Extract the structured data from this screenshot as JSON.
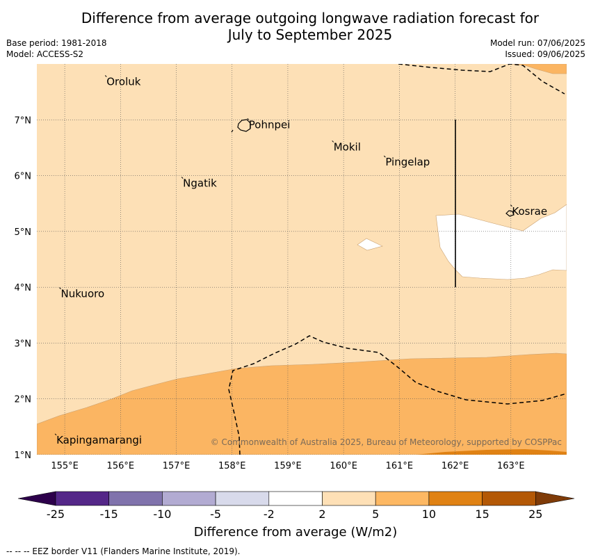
{
  "title_line1": "Difference from average outgoing longwave radiation forecast for",
  "title_line2": "July to September 2025",
  "meta_left": [
    "Base period: 1981-2018",
    "Model: ACCESS-S2"
  ],
  "meta_right": [
    "Model run: 07/06/2025",
    "Issued: 09/06/2025"
  ],
  "map": {
    "lon_range": [
      154.5,
      164.0
    ],
    "lat_range": [
      1.0,
      8.0
    ],
    "lon_ticks": [
      155,
      156,
      157,
      158,
      159,
      160,
      161,
      162,
      163
    ],
    "lon_tick_labels": [
      "155°E",
      "156°E",
      "157°E",
      "158°E",
      "159°E",
      "160°E",
      "161°E",
      "162°E",
      "163°E"
    ],
    "lat_ticks": [
      1,
      2,
      3,
      4,
      5,
      6,
      7
    ],
    "lat_tick_labels": [
      "1°N",
      "2°N",
      "3°N",
      "4°N",
      "5°N",
      "6°N",
      "7°N"
    ],
    "places": [
      {
        "name": "Oroluk",
        "lon": 155.75,
        "lat": 7.62
      },
      {
        "name": "Pohnpei",
        "lon": 158.3,
        "lat": 6.85
      },
      {
        "name": "Mokil",
        "lon": 159.82,
        "lat": 6.45
      },
      {
        "name": "Pingelap",
        "lon": 160.75,
        "lat": 6.18
      },
      {
        "name": "Ngatik",
        "lon": 157.12,
        "lat": 5.8
      },
      {
        "name": "Kosrae",
        "lon": 163.02,
        "lat": 5.3
      },
      {
        "name": "Nukuoro",
        "lon": 154.93,
        "lat": 3.82
      },
      {
        "name": "Kapingamarangi",
        "lon": 154.85,
        "lat": 1.2
      }
    ],
    "copyright": "© Commonwealth of Australia 2025, Bureau of Meteorology, supported by COSPPac",
    "colors": {
      "cat_2_5": "#fde0b6",
      "cat_5_10": "#fbb562",
      "cat_10_15": "#e08214",
      "neutral": "#ffffff"
    }
  },
  "colorbar": {
    "title": "Difference from average (W/m2)",
    "tick_labels": [
      "-25",
      "-15",
      "-10",
      "-5",
      "-2",
      "2",
      "5",
      "10",
      "15",
      "25"
    ],
    "colors": [
      "#2d004b",
      "#542788",
      "#8073ac",
      "#b2abd2",
      "#d8daeb",
      "#ffffff",
      "#fee0b6",
      "#fdb863",
      "#e08214",
      "#b35806",
      "#7f3b08"
    ]
  },
  "footnote": "--  --  -- EEZ border V11 (Flanders Marine Institute, 2019)."
}
